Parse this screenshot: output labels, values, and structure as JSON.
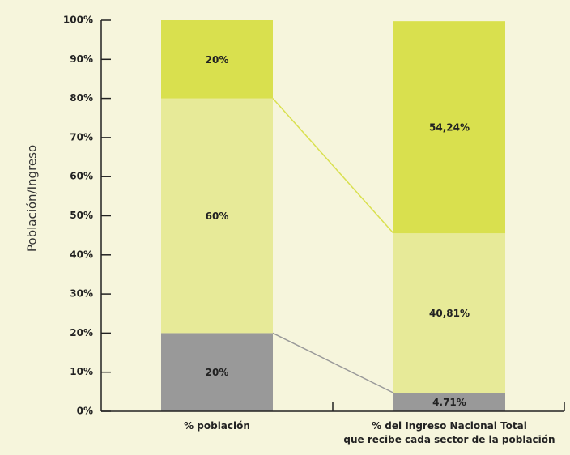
{
  "chart_data": {
    "type": "stacked_bar",
    "y_label": "Población/Ingreso",
    "categories": [
      "% población",
      "% del Ingreso Nacional Total\nque recibe cada sector de la población"
    ],
    "series": [
      {
        "color": "#999999",
        "values": [
          20,
          4.71
        ],
        "value_labels": [
          "20%",
          "4.71%"
        ]
      },
      {
        "color": "#e7ea98",
        "values": [
          60,
          40.81
        ],
        "value_labels": [
          "60%",
          "40,81%"
        ]
      },
      {
        "color": "#d9e04e",
        "values": [
          20,
          54.24
        ],
        "value_labels": [
          "20%",
          "54,24%"
        ]
      }
    ],
    "ylim": [
      0,
      100
    ],
    "yticks": [
      {
        "value": 0,
        "label": "0%"
      },
      {
        "value": 10,
        "label": "10%"
      },
      {
        "value": 20,
        "label": "20%"
      },
      {
        "value": 30,
        "label": "30%"
      },
      {
        "value": 40,
        "label": "40%"
      },
      {
        "value": 50,
        "label": "50%"
      },
      {
        "value": 60,
        "label": "60%"
      },
      {
        "value": 70,
        "label": "70%"
      },
      {
        "value": 80,
        "label": "80%"
      },
      {
        "value": 90,
        "label": "90%"
      },
      {
        "value": 100,
        "label": "100%"
      }
    ]
  }
}
